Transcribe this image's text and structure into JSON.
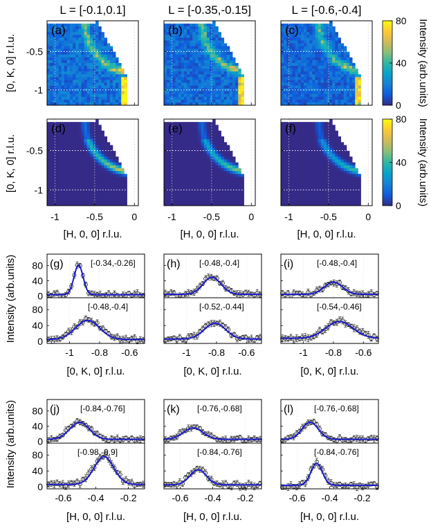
{
  "colorbar": {
    "label": "Intensity (arb.units)",
    "ticks": [
      "80",
      "40",
      "0"
    ],
    "range": [
      0,
      80
    ],
    "colormap": "parula",
    "stops": [
      "#352a87",
      "#0f5cdd",
      "#1481d6",
      "#06a4ca",
      "#2eb7a4",
      "#87bf77",
      "#d1bb59",
      "#fec832",
      "#f9fb0e"
    ]
  },
  "colormaps": {
    "column_titles": [
      "L = [-0.1,0.1]",
      "L = [-0.35,-0.15]",
      "L = [-0.6,-0.4]"
    ],
    "top_row_labels": [
      "(a)",
      "(b)",
      "(c)"
    ],
    "bottom_row_labels": [
      "(d)",
      "(e)",
      "(f)"
    ],
    "ylabel": "[0, K, 0] r.l.u.",
    "xlabel": "[H, 0, 0] r.l.u.",
    "yticks": [
      "-0.5",
      "-1"
    ],
    "xticks": [
      "-1",
      "-0.5",
      "0"
    ],
    "background_color": "#352a87"
  },
  "cuts_k": {
    "xlabel": "[0, K, 0] r.l.u.",
    "xticks": [
      "-1",
      "-0.8",
      "-0.6"
    ],
    "panel_labels": [
      "(g)",
      "(h)",
      "(i)"
    ],
    "ranges_top": [
      "[-0.34,-0.26]",
      "[-0.48,-0.4]",
      "[-0.48,-0.4]"
    ],
    "ranges_bottom": [
      "[-0.48,-0.4]",
      "[-0.52,-0.44]",
      "[-0.54,-0.46]"
    ]
  },
  "cuts_h": {
    "xlabel": "[H, 0, 0] r.l.u.",
    "xticks": [
      "-0.6",
      "-0.4",
      "-0.2"
    ],
    "panel_labels": [
      "(j)",
      "(k)",
      "(l)"
    ],
    "ranges_top": [
      "[-0.84,-0.76]",
      "[-0.76,-0.68]",
      "[-0.76,-0.68]"
    ],
    "ranges_bottom": [
      "[-0.98,-0.9]",
      "[-0.84,-0.76]",
      "[-0.84,-0.76]"
    ]
  },
  "cuts_ylabel": "Intensity (arb.units)",
  "cuts_yticks": [
    "80",
    "40",
    "0"
  ],
  "chart_data": [
    {
      "type": "heatmap",
      "panels": [
        "(a)",
        "(b)",
        "(c)",
        "(d)",
        "(e)",
        "(f)"
      ],
      "x_range": [
        -1.1,
        0.05
      ],
      "y_range": [
        -1.2,
        -0.1
      ],
      "z_range": [
        0,
        80
      ]
    },
    {
      "type": "scatter",
      "title": "",
      "xlabel": "[0, K, 0] r.l.u.",
      "ylabel": "Intensity (arb.units)",
      "xlim": [
        -1.15,
        -0.5
      ],
      "ylim": [
        -5,
        110
      ],
      "panels": [
        {
          "label": "(g)",
          "range": "[-0.34,-0.26]",
          "center": -0.94,
          "width": 0.03,
          "amplitude": 78,
          "background": 3
        },
        {
          "label": "(g)",
          "range": "[-0.48,-0.4]",
          "center": -0.88,
          "width": 0.08,
          "amplitude": 48,
          "background": 5
        },
        {
          "label": "(h)",
          "range": "[-0.48,-0.4]",
          "center": -0.83,
          "width": 0.06,
          "amplitude": 45,
          "background": 4
        },
        {
          "label": "(h)",
          "range": "[-0.52,-0.44]",
          "center": -0.81,
          "width": 0.07,
          "amplitude": 40,
          "background": 6
        },
        {
          "label": "(i)",
          "range": "[-0.48,-0.4]",
          "center": -0.8,
          "width": 0.06,
          "amplitude": 32,
          "background": 4
        },
        {
          "label": "(i)",
          "range": "[-0.54,-0.46]",
          "center": -0.76,
          "width": 0.09,
          "amplitude": 42,
          "background": 8
        }
      ]
    },
    {
      "type": "scatter",
      "title": "",
      "xlabel": "[H, 0, 0] r.l.u.",
      "ylabel": "Intensity (arb.units)",
      "xlim": [
        -0.7,
        -0.1
      ],
      "ylim": [
        -5,
        110
      ],
      "panels": [
        {
          "label": "(j)",
          "range": "[-0.84,-0.76]",
          "center": -0.5,
          "width": 0.06,
          "amplitude": 45,
          "background": 5
        },
        {
          "label": "(j)",
          "range": "[-0.98,-0.9]",
          "center": -0.35,
          "width": 0.06,
          "amplitude": 70,
          "background": 6
        },
        {
          "label": "(k)",
          "range": "[-0.76,-0.68]",
          "center": -0.52,
          "width": 0.06,
          "amplitude": 30,
          "background": 5
        },
        {
          "label": "(k)",
          "range": "[-0.84,-0.76]",
          "center": -0.49,
          "width": 0.05,
          "amplitude": 38,
          "background": 5
        },
        {
          "label": "(l)",
          "range": "[-0.76,-0.68]",
          "center": -0.52,
          "width": 0.05,
          "amplitude": 45,
          "background": 5
        },
        {
          "label": "(l)",
          "range": "[-0.84,-0.76]",
          "center": -0.48,
          "width": 0.035,
          "amplitude": 55,
          "background": 4
        }
      ]
    }
  ]
}
